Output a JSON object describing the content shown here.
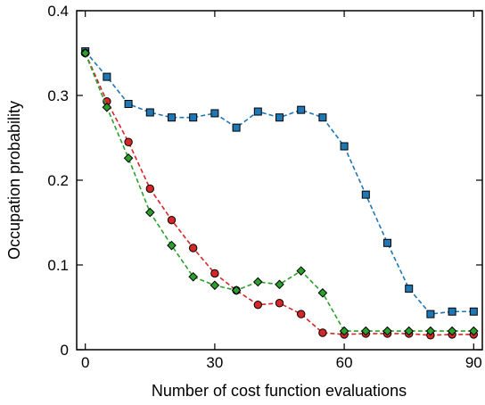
{
  "chart_data": {
    "type": "line",
    "title": "",
    "xlabel": "Number of cost function evaluations",
    "ylabel": "Occupation probability",
    "xlim": [
      -2,
      92
    ],
    "ylim": [
      0,
      0.4
    ],
    "x_ticks": [
      0,
      30,
      60,
      90
    ],
    "x_tick_labels": [
      "0",
      "30",
      "60",
      "90"
    ],
    "y_ticks": [
      0,
      0.1,
      0.2,
      0.3,
      0.4
    ],
    "y_tick_labels": [
      "0",
      "0.1",
      "0.2",
      "0.3",
      "0.4"
    ],
    "grid": false,
    "legend": "none",
    "series": [
      {
        "color": "#1f77b4",
        "marker": "square",
        "x": [
          0,
          5,
          10,
          15,
          20,
          25,
          30,
          35,
          40,
          45,
          50,
          55,
          60,
          65,
          70,
          75,
          80,
          85,
          90
        ],
        "y": [
          0.352,
          0.322,
          0.29,
          0.28,
          0.274,
          0.274,
          0.279,
          0.262,
          0.281,
          0.274,
          0.283,
          0.274,
          0.24,
          0.183,
          0.126,
          0.072,
          0.042,
          0.045,
          0.045
        ]
      },
      {
        "color": "#d62728",
        "marker": "circle",
        "x": [
          0,
          5,
          10,
          15,
          20,
          25,
          30,
          35,
          40,
          45,
          50,
          55,
          60,
          65,
          70,
          75,
          80,
          85,
          90
        ],
        "y": [
          0.35,
          0.293,
          0.245,
          0.19,
          0.153,
          0.12,
          0.09,
          0.07,
          0.053,
          0.055,
          0.042,
          0.02,
          0.018,
          0.019,
          0.019,
          0.019,
          0.017,
          0.018,
          0.018
        ]
      },
      {
        "color": "#2ca02c",
        "marker": "diamond",
        "x": [
          0,
          5,
          10,
          15,
          20,
          25,
          30,
          35,
          40,
          45,
          50,
          55,
          60,
          65,
          70,
          75,
          80,
          85,
          90
        ],
        "y": [
          0.35,
          0.286,
          0.226,
          0.162,
          0.123,
          0.086,
          0.076,
          0.07,
          0.08,
          0.077,
          0.093,
          0.067,
          0.022,
          0.022,
          0.022,
          0.022,
          0.022,
          0.022,
          0.022
        ]
      }
    ]
  }
}
